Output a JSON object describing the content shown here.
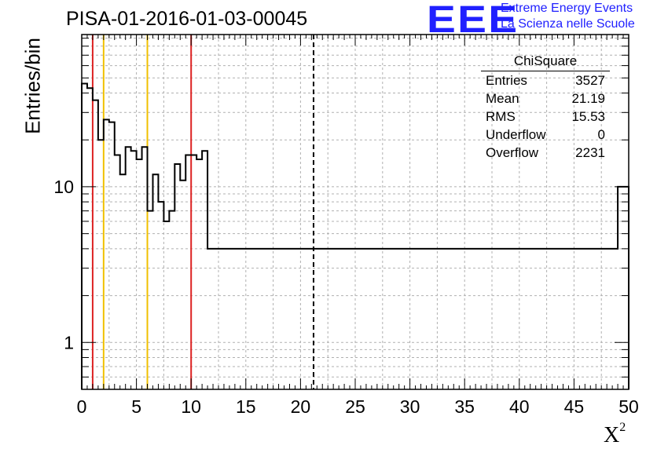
{
  "header": {
    "title": "PISA-01-2016-01-03-00045",
    "logo_text": "EEE",
    "logo_line1": "Extreme Energy Events",
    "logo_line2": "La Scienza nelle Scuole"
  },
  "stats_box": {
    "title": "ChiSquare",
    "rows": [
      {
        "name": "Entries",
        "value": "3527"
      },
      {
        "name": "Mean",
        "value": "21.19"
      },
      {
        "name": "RMS",
        "value": "15.53"
      },
      {
        "name": "Underflow",
        "value": "0"
      },
      {
        "name": "Overflow",
        "value": "2231"
      }
    ]
  },
  "colors": {
    "hist": "#000000",
    "red_line": "#dd2222",
    "yellow_line": "#f0c000",
    "grid": "#b0b0b0",
    "logo": "#2020ff"
  },
  "chart_data": {
    "type": "bar",
    "title": "PISA-01-2016-01-03-00045",
    "xlabel": "X",
    "xlabel_sup": "2",
    "ylabel": "Entries/bin",
    "xlim": [
      0,
      50
    ],
    "ylim": [
      0.5,
      95
    ],
    "log_y": true,
    "grid": true,
    "bin_width": 0.5,
    "x_ticks": [
      "0",
      "5",
      "10",
      "15",
      "20",
      "25",
      "30",
      "35",
      "40",
      "45",
      "50"
    ],
    "y_ticks": [
      "1",
      "10"
    ],
    "values": [
      46,
      43,
      36,
      20,
      27,
      26,
      16,
      12,
      18,
      17,
      15,
      18,
      7,
      12,
      8,
      6,
      7,
      14,
      11,
      16,
      16,
      15,
      17,
      4,
      4,
      4,
      4,
      4,
      4,
      4,
      4,
      4,
      4,
      4,
      4,
      4,
      4,
      4,
      4,
      4,
      4,
      4,
      4,
      4,
      4,
      4,
      4,
      4,
      4,
      4,
      4,
      4,
      4,
      4,
      4,
      4,
      4,
      4,
      4,
      4,
      4,
      4,
      4,
      4,
      4,
      4,
      4,
      4,
      4,
      4,
      4,
      4,
      4,
      4,
      4,
      4,
      4,
      4,
      4,
      4,
      4,
      4,
      4,
      4,
      4,
      4,
      4,
      4,
      4,
      4,
      4,
      4,
      4,
      4,
      4,
      4,
      4,
      4,
      10,
      10
    ],
    "vertical_lines": [
      {
        "x": 1,
        "style": "red"
      },
      {
        "x": 2,
        "style": "yellow"
      },
      {
        "x": 6,
        "style": "yellow"
      },
      {
        "x": 10,
        "style": "red"
      },
      {
        "x": 21.19,
        "style": "dashed"
      }
    ]
  }
}
